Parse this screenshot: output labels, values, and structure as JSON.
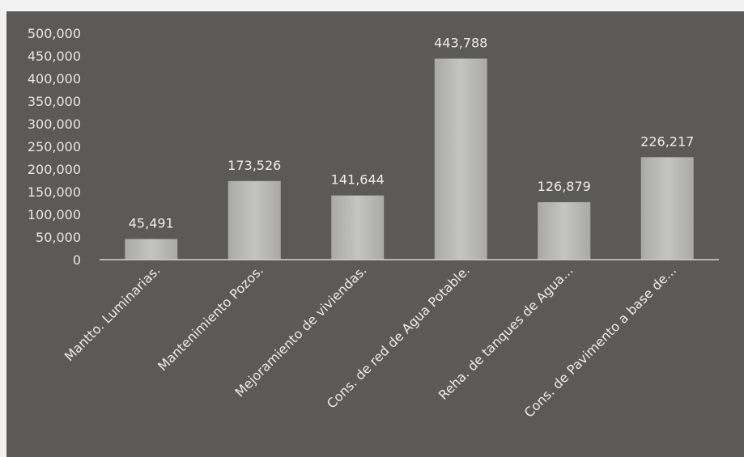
{
  "chart_data": {
    "type": "bar",
    "title": "",
    "xlabel": "",
    "ylabel": "",
    "categories": [
      "Mantto. Luminarias.",
      "Mantenimiento Pozos.",
      "Mejoramiento de viviendas.",
      "Cons. de red de Agua Potable.",
      "Reha. de tanques de Agua...",
      "Cons. de Pavimento a base de..."
    ],
    "values": [
      45491,
      173526,
      141644,
      443788,
      126879,
      226217
    ],
    "data_labels": [
      "45,491",
      "173,526",
      "141,644",
      "443,788",
      "126,879",
      "226,217"
    ],
    "yticks": [
      0,
      50000,
      100000,
      150000,
      200000,
      250000,
      300000,
      350000,
      400000,
      450000,
      500000
    ],
    "ytick_labels": [
      "0",
      "50,000",
      "100,000",
      "150,000",
      "200,000",
      "250,000",
      "300,000",
      "350,000",
      "400,000",
      "450,000",
      "500,000"
    ],
    "ylim": [
      0,
      500000
    ],
    "grid": false,
    "legend": "none",
    "colors": {
      "background": "#5b5a58",
      "bar": "#b5b5b3",
      "text": "#e8e8e8",
      "axis": "#d0d0d0"
    }
  }
}
